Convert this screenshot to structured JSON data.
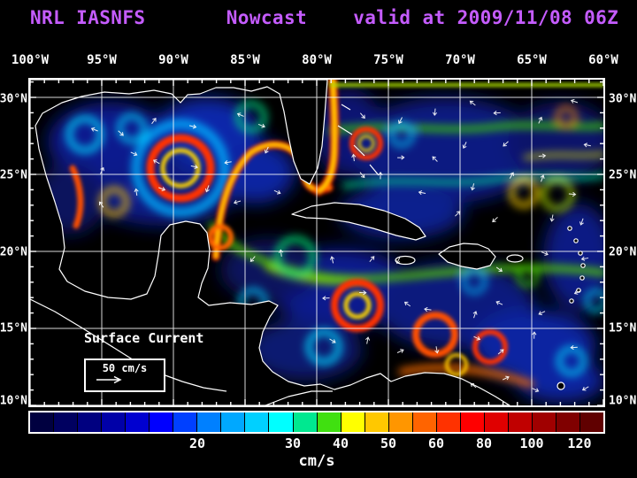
{
  "title": "NRL IASNFS       Nowcast    valid at 2009/11/08 06Z",
  "colors": {
    "title": "#c55cff",
    "axis_text": "#ffffff",
    "frame": "#ffffff",
    "background": "#000000"
  },
  "axes": {
    "lon_labels": [
      "100°W",
      "95°W",
      "90°W",
      "85°W",
      "80°W",
      "75°W",
      "70°W",
      "65°W",
      "60°W"
    ],
    "lat_labels_left": [
      "30°N",
      "25°N",
      "20°N",
      "15°N",
      "10°N"
    ],
    "lat_labels_right": [
      "30°N",
      "25°N",
      "20°N",
      "15°N",
      "10°N"
    ]
  },
  "map_legend": {
    "label": "Surface Current",
    "scale_text": "50 cm/s"
  },
  "colorbar": {
    "unit": "cm/s",
    "ticks": [
      {
        "label": "20",
        "pct": 29.17
      },
      {
        "label": "30",
        "pct": 45.83
      },
      {
        "label": "40",
        "pct": 54.17
      },
      {
        "label": "50",
        "pct": 62.5
      },
      {
        "label": "60",
        "pct": 70.83
      },
      {
        "label": "80",
        "pct": 79.17
      },
      {
        "label": "100",
        "pct": 87.5
      },
      {
        "label": "120",
        "pct": 95.83
      }
    ],
    "segments": [
      "#000040",
      "#000060",
      "#000080",
      "#0000a8",
      "#0000d0",
      "#0000ff",
      "#0040ff",
      "#0080ff",
      "#00a8ff",
      "#00d0ff",
      "#00ffff",
      "#00e890",
      "#40e010",
      "#ffff00",
      "#ffc800",
      "#ff9600",
      "#ff6400",
      "#ff3200",
      "#ff0000",
      "#e00000",
      "#c00000",
      "#a00000",
      "#800000",
      "#600000"
    ]
  },
  "chart_data": {
    "type": "heatmap",
    "title": "NRL IASNFS Nowcast valid at 2009/11/08 06Z",
    "variable": "Surface Current",
    "unit": "cm/s",
    "x_ticks": [
      "100°W",
      "95°W",
      "90°W",
      "85°W",
      "80°W",
      "75°W",
      "70°W",
      "65°W",
      "60°W"
    ],
    "y_ticks": [
      "30°N",
      "25°N",
      "20°N",
      "15°N",
      "10°N"
    ],
    "colorbar_tick_values": [
      20,
      30,
      40,
      50,
      60,
      80,
      100,
      120
    ],
    "reference_vector_cm_s": 50
  }
}
